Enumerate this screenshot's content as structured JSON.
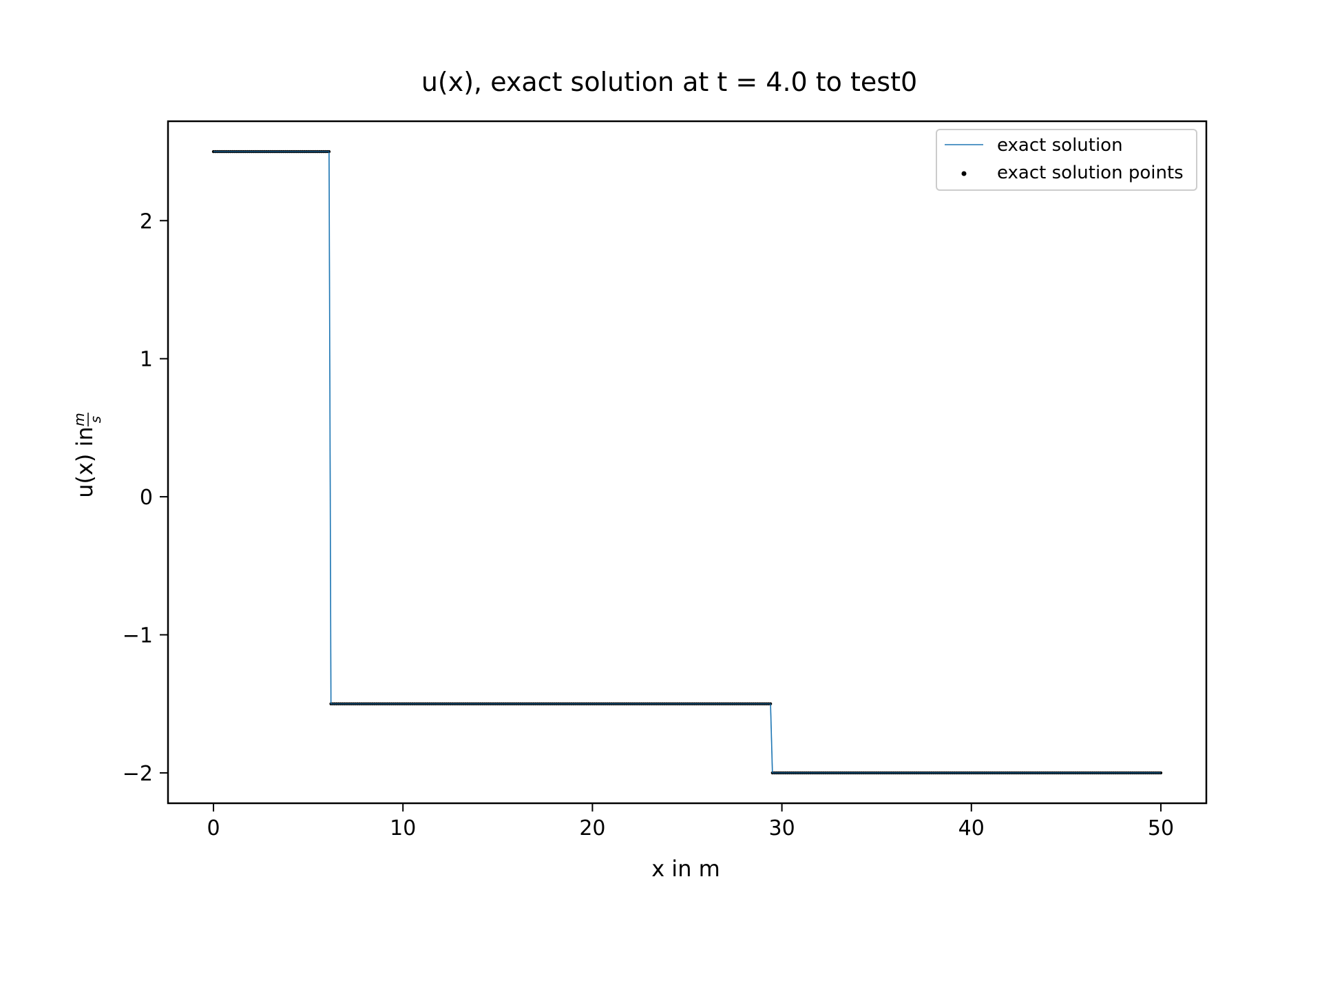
{
  "chart_data": {
    "type": "line",
    "title": "u(x), exact solution at t = 4.0 to test0",
    "xlabel": "x in m",
    "ylabel_prefix": "u(x) in",
    "ylabel_unit_num": "m",
    "ylabel_unit_den": "s",
    "xlim": [
      -2.4,
      52.4
    ],
    "ylim": [
      -2.22,
      2.72
    ],
    "xticks": [
      0,
      10,
      20,
      30,
      40,
      50
    ],
    "xtick_labels": [
      "0",
      "10",
      "20",
      "30",
      "40",
      "50"
    ],
    "yticks": [
      2,
      1,
      0,
      -1,
      -2
    ],
    "ytick_labels": [
      "2",
      "1",
      "0",
      "−1",
      "−2"
    ],
    "grid": false,
    "legend_position": "top-right",
    "series": [
      {
        "name": "exact solution",
        "kind": "line",
        "color": "#1f77b4",
        "x": [
          0,
          6.1,
          6.2,
          29.4,
          29.5,
          50
        ],
        "y": [
          2.5,
          2.5,
          -1.5,
          -1.5,
          -2.0,
          -2.0
        ]
      },
      {
        "name": "exact solution points",
        "kind": "scatter",
        "color": "#000000",
        "segments": [
          {
            "x_start": 0,
            "x_end": 6.1,
            "y": 2.5
          },
          {
            "x_start": 6.2,
            "x_end": 29.4,
            "y": -1.5
          },
          {
            "x_start": 29.5,
            "x_end": 50,
            "y": -2.0
          }
        ],
        "spacing": 0.1
      }
    ]
  }
}
